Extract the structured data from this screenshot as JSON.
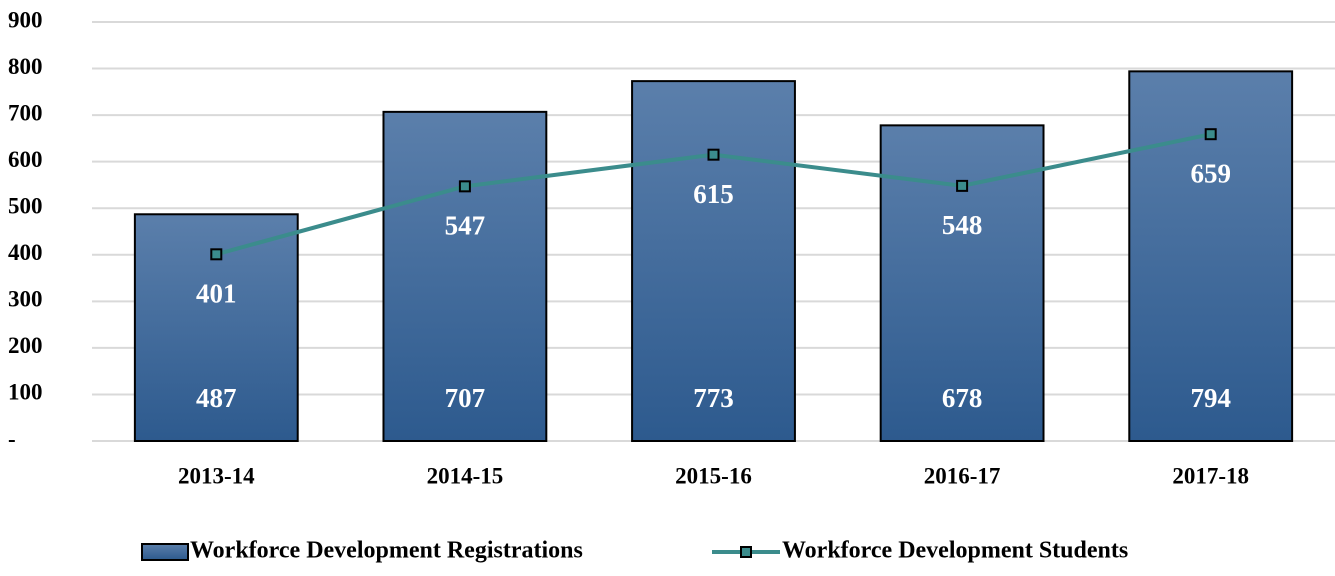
{
  "chart_data": {
    "type": "bar",
    "categories": [
      "2013-14",
      "2014-15",
      "2015-16",
      "2016-17",
      "2017-18"
    ],
    "series": [
      {
        "name": "Workforce Development Registrations",
        "type": "bar",
        "color": "#3f6a9c",
        "values": [
          487,
          707,
          773,
          678,
          794
        ]
      },
      {
        "name": "Workforce Development Students",
        "type": "line",
        "color": "#3b8c8c",
        "values": [
          401,
          547,
          615,
          548,
          659
        ]
      }
    ],
    "ylim": [
      0,
      900
    ],
    "yticks": [
      {
        "value": 0,
        "label": "-"
      },
      100,
      200,
      300,
      400,
      500,
      600,
      700,
      800,
      900
    ],
    "grid": true,
    "legend": "bottom"
  }
}
